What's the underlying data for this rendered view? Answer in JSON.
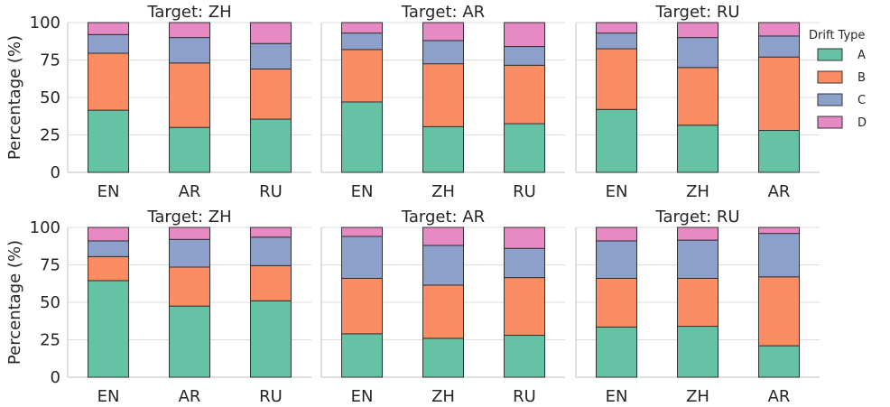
{
  "chart_data": [
    {
      "type": "bar",
      "stacked": true,
      "title": "Target: ZH",
      "ylabel": "Percentage (%)",
      "categories": [
        "EN",
        "AR",
        "RU"
      ],
      "ylim": [
        0,
        100
      ],
      "yticks": [
        0,
        25,
        50,
        75,
        100
      ],
      "grid": true,
      "series": [
        {
          "name": "A",
          "values": [
            41.5,
            30,
            35.5
          ]
        },
        {
          "name": "B",
          "values": [
            38,
            43,
            33.5
          ]
        },
        {
          "name": "C",
          "values": [
            12.5,
            17,
            17
          ]
        },
        {
          "name": "D",
          "values": [
            8,
            10,
            14
          ]
        }
      ]
    },
    {
      "type": "bar",
      "stacked": true,
      "title": "Target: AR",
      "ylabel": "",
      "categories": [
        "EN",
        "ZH",
        "RU"
      ],
      "ylim": [
        0,
        100
      ],
      "yticks": [
        0,
        25,
        50,
        75,
        100
      ],
      "grid": true,
      "series": [
        {
          "name": "A",
          "values": [
            47,
            30.5,
            32.5
          ]
        },
        {
          "name": "B",
          "values": [
            35,
            42,
            39
          ]
        },
        {
          "name": "C",
          "values": [
            11,
            15.5,
            12.5
          ]
        },
        {
          "name": "D",
          "values": [
            7,
            12,
            16
          ]
        }
      ]
    },
    {
      "type": "bar",
      "stacked": true,
      "title": "Target: RU",
      "ylabel": "",
      "categories": [
        "EN",
        "ZH",
        "AR"
      ],
      "ylim": [
        0,
        100
      ],
      "yticks": [
        0,
        25,
        50,
        75,
        100
      ],
      "grid": true,
      "series": [
        {
          "name": "A",
          "values": [
            42,
            31.5,
            28
          ]
        },
        {
          "name": "B",
          "values": [
            40.5,
            38.5,
            49
          ]
        },
        {
          "name": "C",
          "values": [
            10.5,
            20,
            14
          ]
        },
        {
          "name": "D",
          "values": [
            7,
            10,
            9
          ]
        }
      ]
    },
    {
      "type": "bar",
      "stacked": true,
      "title": "Target: ZH",
      "ylabel": "Percentage (%)",
      "categories": [
        "EN",
        "AR",
        "RU"
      ],
      "ylim": [
        0,
        100
      ],
      "yticks": [
        0,
        25,
        50,
        75,
        100
      ],
      "grid": true,
      "series": [
        {
          "name": "A",
          "values": [
            64.5,
            47.5,
            51
          ]
        },
        {
          "name": "B",
          "values": [
            16,
            26,
            23.5
          ]
        },
        {
          "name": "C",
          "values": [
            10.5,
            18.5,
            19
          ]
        },
        {
          "name": "D",
          "values": [
            9,
            8,
            6.5
          ]
        }
      ]
    },
    {
      "type": "bar",
      "stacked": true,
      "title": "Target: AR",
      "ylabel": "",
      "categories": [
        "EN",
        "ZH",
        "RU"
      ],
      "ylim": [
        0,
        100
      ],
      "yticks": [
        0,
        25,
        50,
        75,
        100
      ],
      "grid": true,
      "series": [
        {
          "name": "A",
          "values": [
            29,
            26,
            28
          ]
        },
        {
          "name": "B",
          "values": [
            37,
            35.5,
            38.5
          ]
        },
        {
          "name": "C",
          "values": [
            28,
            26.5,
            19.5
          ]
        },
        {
          "name": "D",
          "values": [
            6,
            12,
            14
          ]
        }
      ]
    },
    {
      "type": "bar",
      "stacked": true,
      "title": "Target: RU",
      "ylabel": "",
      "categories": [
        "EN",
        "ZH",
        "AR"
      ],
      "ylim": [
        0,
        100
      ],
      "yticks": [
        0,
        25,
        50,
        75,
        100
      ],
      "grid": true,
      "series": [
        {
          "name": "A",
          "values": [
            33.5,
            34,
            21
          ]
        },
        {
          "name": "B",
          "values": [
            32.5,
            32,
            46
          ]
        },
        {
          "name": "C",
          "values": [
            25,
            25.5,
            29
          ]
        },
        {
          "name": "D",
          "values": [
            9,
            8.5,
            4
          ]
        }
      ]
    }
  ],
  "legend": {
    "title": "Drift Type",
    "placement": "top-right",
    "items": [
      {
        "label": "A",
        "color": "#66c2a5"
      },
      {
        "label": "B",
        "color": "#fc8d62"
      },
      {
        "label": "C",
        "color": "#8da0cb"
      },
      {
        "label": "D",
        "color": "#e78ac3"
      }
    ]
  },
  "colors": {
    "A": "#66c2a5",
    "B": "#fc8d62",
    "C": "#8da0cb",
    "D": "#e78ac3",
    "edge": "#333333",
    "grid": "#dddddd",
    "axis": "#cccccc"
  }
}
